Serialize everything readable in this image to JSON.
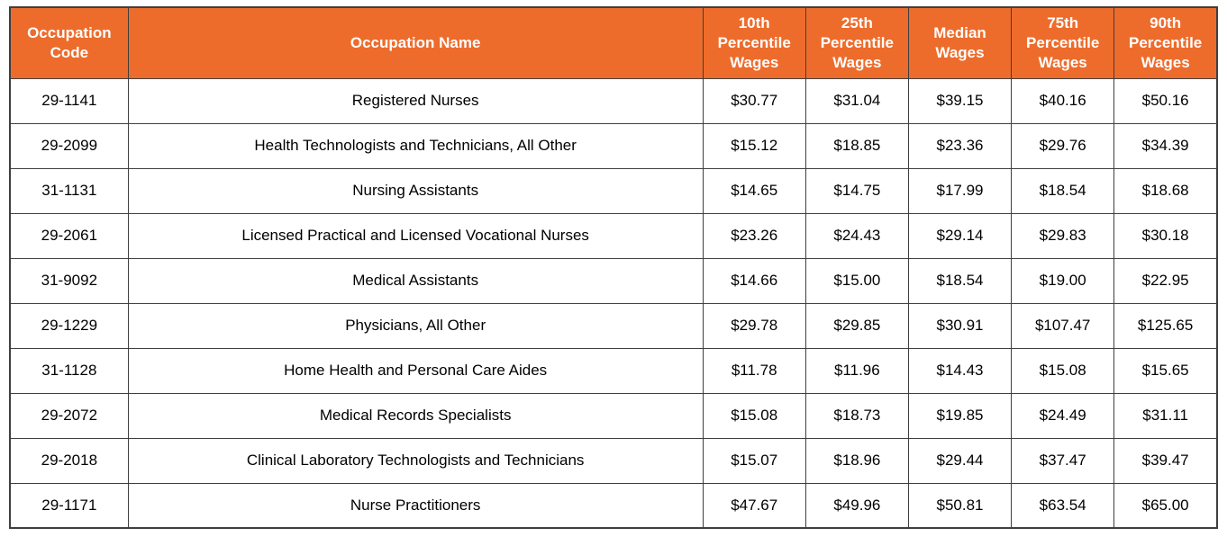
{
  "table": {
    "columns": [
      {
        "key": "code",
        "label": "Occupation Code"
      },
      {
        "key": "name",
        "label": "Occupation Name"
      },
      {
        "key": "p10",
        "label": "10th Percentile Wages"
      },
      {
        "key": "p25",
        "label": "25th Percentile Wages"
      },
      {
        "key": "median",
        "label": "Median Wages"
      },
      {
        "key": "p75",
        "label": "75th Percentile Wages"
      },
      {
        "key": "p90",
        "label": "90th Percentile Wages"
      }
    ],
    "rows": [
      [
        "29-1141",
        "Registered Nurses",
        "$30.77",
        "$31.04",
        "$39.15",
        "$40.16",
        "$50.16"
      ],
      [
        "29-2099",
        "Health Technologists and Technicians, All Other",
        "$15.12",
        "$18.85",
        "$23.36",
        "$29.76",
        "$34.39"
      ],
      [
        "31-1131",
        "Nursing Assistants",
        "$14.65",
        "$14.75",
        "$17.99",
        "$18.54",
        "$18.68"
      ],
      [
        "29-2061",
        "Licensed Practical and Licensed Vocational Nurses",
        "$23.26",
        "$24.43",
        "$29.14",
        "$29.83",
        "$30.18"
      ],
      [
        "31-9092",
        "Medical Assistants",
        "$14.66",
        "$15.00",
        "$18.54",
        "$19.00",
        "$22.95"
      ],
      [
        "29-1229",
        "Physicians, All Other",
        "$29.78",
        "$29.85",
        "$30.91",
        "$107.47",
        "$125.65"
      ],
      [
        "31-1128",
        "Home Health and Personal Care Aides",
        "$11.78",
        "$11.96",
        "$14.43",
        "$15.08",
        "$15.65"
      ],
      [
        "29-2072",
        "Medical Records Specialists",
        "$15.08",
        "$18.73",
        "$19.85",
        "$24.49",
        "$31.11"
      ],
      [
        "29-2018",
        "Clinical Laboratory Technologists and Technicians",
        "$15.07",
        "$18.96",
        "$29.44",
        "$37.47",
        "$39.47"
      ],
      [
        "29-1171",
        "Nurse Practitioners",
        "$47.67",
        "$49.96",
        "$50.81",
        "$63.54",
        "$65.00"
      ]
    ]
  },
  "colors": {
    "header_bg": "#ED6C2C",
    "header_text": "#FFFFFF",
    "border": "#3F3F3F",
    "body_text": "#000000",
    "row_bg": "#FFFFFF"
  }
}
